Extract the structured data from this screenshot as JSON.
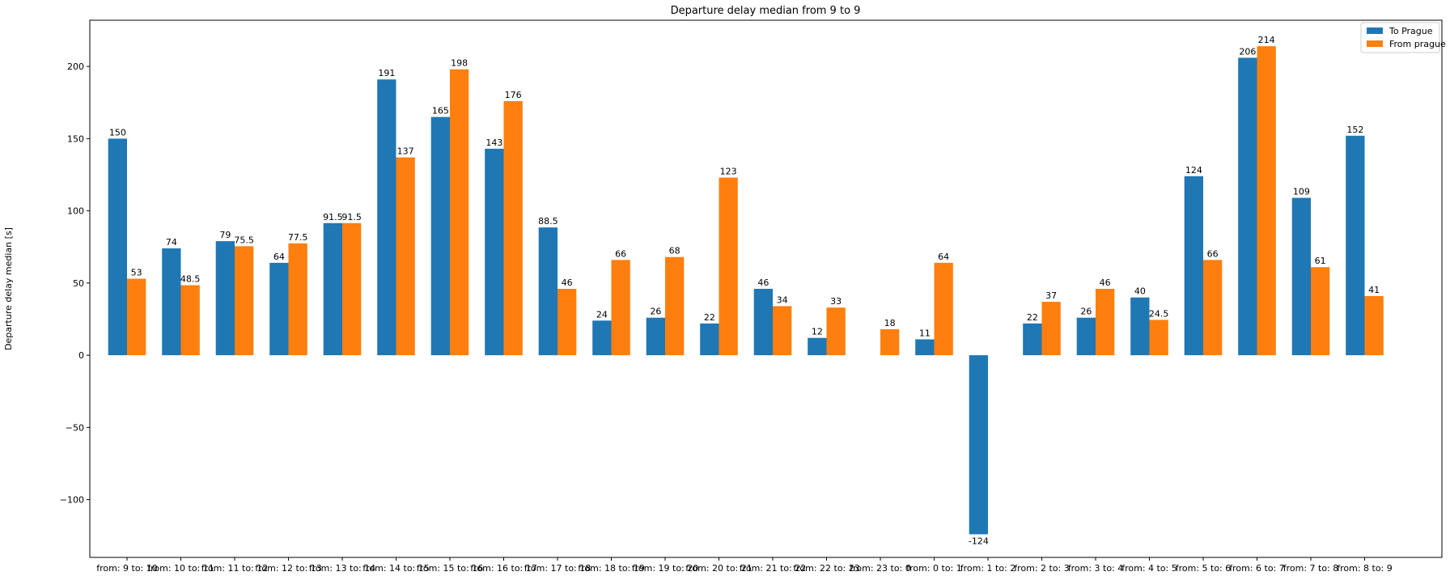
{
  "chart_data": {
    "type": "bar",
    "title": "Departure delay median from 9 to 9",
    "xlabel": "",
    "ylabel": "Departure delay median [s]",
    "ylim": [
      -140,
      232
    ],
    "yticks": [
      -100,
      -50,
      0,
      50,
      100,
      150,
      200
    ],
    "ytick_labels": [
      "−100",
      "−50",
      "0",
      "50",
      "100",
      "150",
      "200"
    ],
    "grid": false,
    "legend_position": "top-right",
    "categories": [
      "from: 9 to: 10",
      "from: 10 to: 11",
      "from: 11 to: 12",
      "from: 12 to: 13",
      "from: 13 to: 14",
      "from: 14 to: 15",
      "from: 15 to: 16",
      "from: 16 to: 17",
      "from: 17 to: 18",
      "from: 18 to: 19",
      "from: 19 to: 20",
      "from: 20 to: 21",
      "from: 21 to: 22",
      "from: 22 to: 23",
      "from: 23 to: 0",
      "from: 0 to: 1",
      "from: 1 to: 2",
      "from: 2 to: 3",
      "from: 3 to: 4",
      "from: 4 to: 5",
      "from: 5 to: 6",
      "from: 6 to: 7",
      "from: 7 to: 8",
      "from: 8 to: 9"
    ],
    "series": [
      {
        "name": "To Prague",
        "color": "#1f77b4",
        "values": [
          150,
          74,
          79,
          64,
          91.5,
          191,
          165,
          143,
          88.5,
          24,
          26,
          22,
          46,
          12,
          null,
          11,
          -124,
          22,
          26,
          40,
          124,
          206,
          109,
          152
        ]
      },
      {
        "name": "From prague",
        "color": "#ff7f0e",
        "values": [
          53,
          48.5,
          75.5,
          77.5,
          91.5,
          137,
          198,
          176,
          46,
          66,
          68,
          123,
          34,
          33,
          18,
          64,
          null,
          37,
          46,
          24.5,
          66,
          214,
          61,
          41
        ]
      }
    ]
  }
}
